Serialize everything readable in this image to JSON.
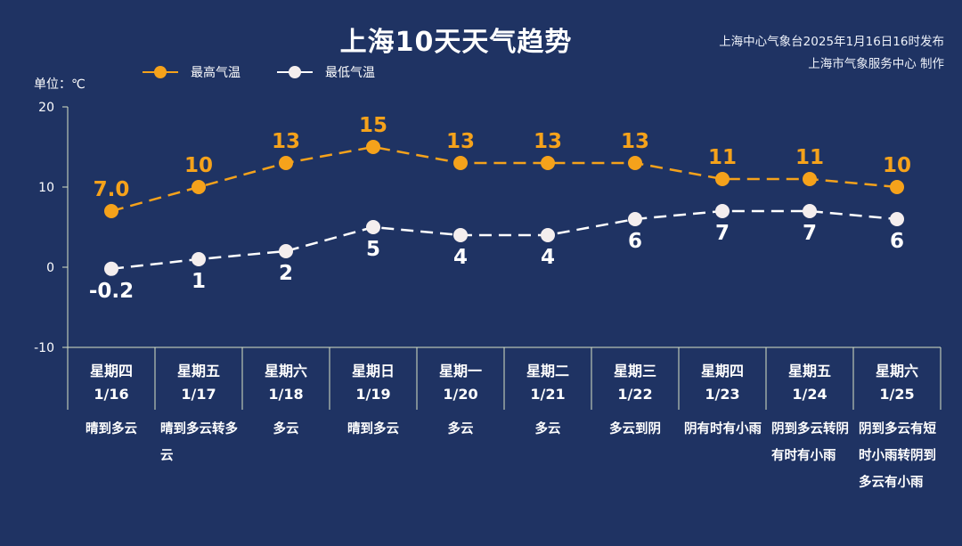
{
  "title": "上海10天天气趋势",
  "source_line1": "上海中心气象台2025年1月16日16时发布",
  "source_line2": "上海市气象服务中心 制作",
  "unit": "单位：℃",
  "colors": {
    "background": "#1f3363",
    "high": "#f5a21b",
    "low": "#ffffff",
    "axis": "#d9e3c6"
  },
  "chart_data": {
    "type": "line",
    "ylim": [
      -10,
      20
    ],
    "yticks": [
      "20",
      "10",
      "0",
      "-10"
    ],
    "categories": [
      "1/16",
      "1/17",
      "1/18",
      "1/19",
      "1/20",
      "1/21",
      "1/22",
      "1/23",
      "1/24",
      "1/25"
    ],
    "series": [
      {
        "name": "最高气温",
        "values": [
          7.0,
          10,
          13,
          15,
          13,
          13,
          13,
          11,
          11,
          10
        ],
        "labels": [
          "7.0",
          "10",
          "13",
          "15",
          "13",
          "13",
          "13",
          "11",
          "11",
          "10"
        ]
      },
      {
        "name": "最低气温",
        "values": [
          -0.2,
          1,
          2,
          5,
          4,
          4,
          6,
          7,
          7,
          6
        ],
        "labels": [
          "-0.2",
          "1",
          "2",
          "5",
          "4",
          "4",
          "6",
          "7",
          "7",
          "6"
        ]
      }
    ]
  },
  "days": [
    {
      "dow": "星期四",
      "date": "1/16",
      "weather": "晴到多云"
    },
    {
      "dow": "星期五",
      "date": "1/17",
      "weather": "晴到多云转多云"
    },
    {
      "dow": "星期六",
      "date": "1/18",
      "weather": "多云"
    },
    {
      "dow": "星期日",
      "date": "1/19",
      "weather": "晴到多云"
    },
    {
      "dow": "星期一",
      "date": "1/20",
      "weather": "多云"
    },
    {
      "dow": "星期二",
      "date": "1/21",
      "weather": "多云"
    },
    {
      "dow": "星期三",
      "date": "1/22",
      "weather": "多云到阴"
    },
    {
      "dow": "星期四",
      "date": "1/23",
      "weather": "阴有时有小雨"
    },
    {
      "dow": "星期五",
      "date": "1/24",
      "weather": "阴到多云转阴有时有小雨"
    },
    {
      "dow": "星期六",
      "date": "1/25",
      "weather": "阴到多云有短时小雨转阴到多云有小雨"
    }
  ]
}
